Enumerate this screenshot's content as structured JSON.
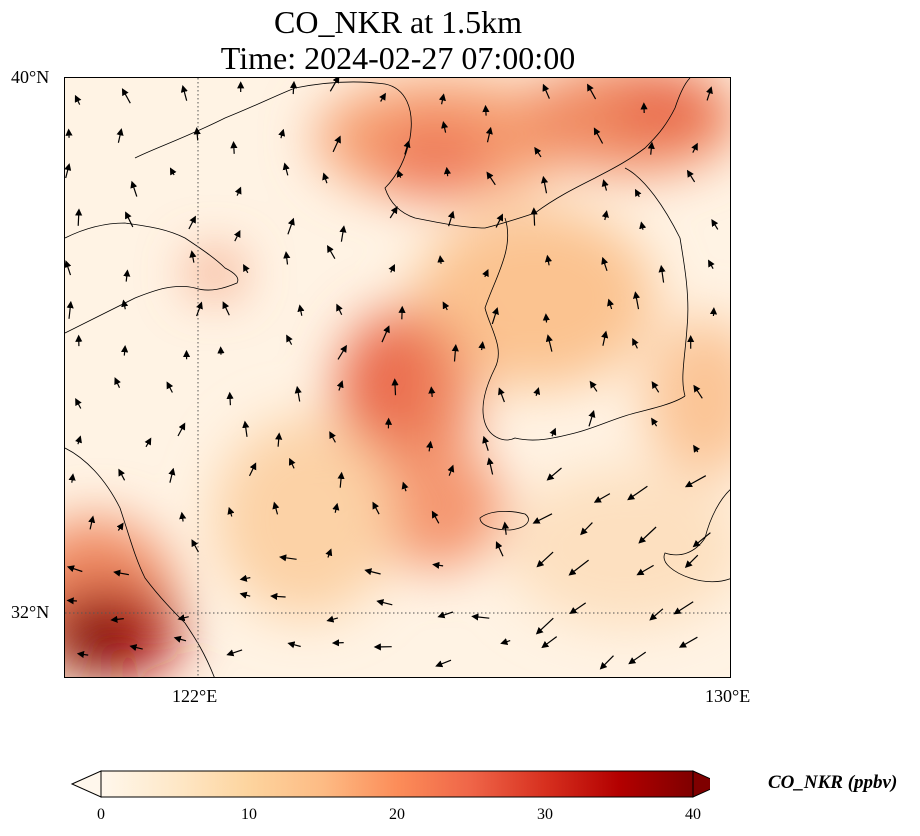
{
  "title": {
    "line1": "CO_NKR at 1.5km",
    "line2": "Time: 2024-02-27 07:00:00"
  },
  "map": {
    "lat_labels": [
      "40°N",
      "32°N"
    ],
    "lon_labels": [
      "122°E",
      "130°E"
    ],
    "lat_range": [
      31,
      40
    ],
    "lon_range": [
      120,
      130
    ],
    "gridlines": {
      "lat": 32,
      "lon": 122,
      "style": "dotted"
    },
    "field": "CO_NKR",
    "overlay": "wind vectors"
  },
  "colorbar": {
    "title": "CO_NKR (ppbv)",
    "ticks": [
      "0",
      "10",
      "20",
      "30",
      "40"
    ],
    "range": [
      0,
      40
    ],
    "extend": "both",
    "colormap": [
      "#fff7ec",
      "#fee8c8",
      "#fdd49e",
      "#fdbb84",
      "#fc8d59",
      "#ef6548",
      "#d7301f",
      "#b30000",
      "#7f0000"
    ]
  }
}
